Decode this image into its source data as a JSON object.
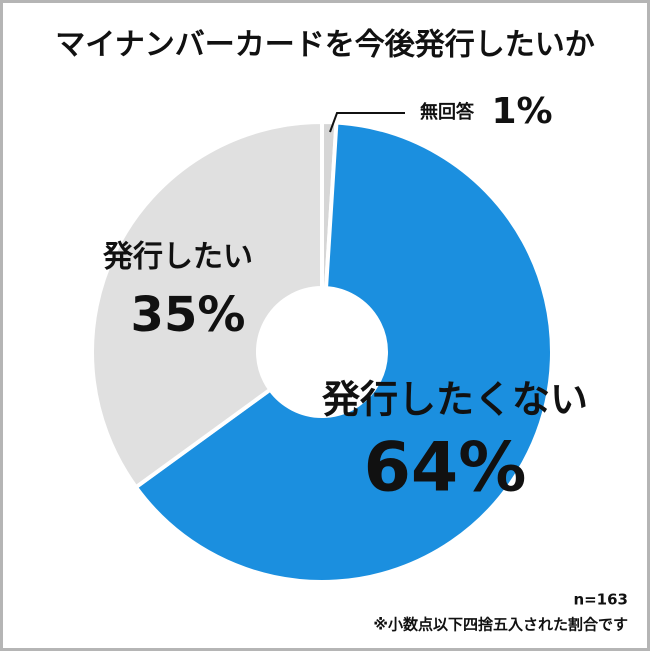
{
  "chart_data": {
    "type": "pie",
    "title": "マイナンバーカードを今後発行したいか",
    "categories": [
      "発行したくない",
      "発行したい",
      "無回答"
    ],
    "values": [
      64,
      35,
      1
    ],
    "value_labels": [
      "64%",
      "35%",
      "1%"
    ],
    "colors": [
      "#1b8fdf",
      "#e0e0e0",
      "#d6d6d6"
    ],
    "note": "n=163",
    "footnote": "※小数点以下四捨五入された割合です"
  }
}
